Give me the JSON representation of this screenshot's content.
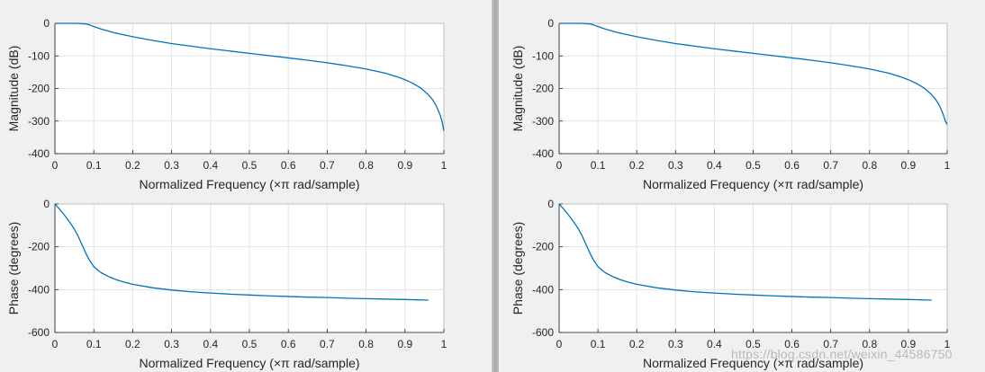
{
  "chart_data": [
    {
      "name": "panel-left",
      "type": "line",
      "subplots": [
        {
          "id": "magnitude",
          "xlabel": "Normalized Frequency  (×π rad/sample)",
          "ylabel": "Magnitude (dB)",
          "xlim": [
            0,
            1
          ],
          "ylim": [
            -400,
            0
          ],
          "xticks": [
            "0",
            "0.1",
            "0.2",
            "0.3",
            "0.4",
            "0.5",
            "0.6",
            "0.7",
            "0.8",
            "0.9",
            "1"
          ],
          "yticks": [
            "0",
            "-100",
            "-200",
            "-300",
            "-400"
          ],
          "grid": true,
          "series": [
            {
              "name": "magnitude",
              "color": "#0072bd",
              "x": [
                0,
                0.02,
                0.04,
                0.06,
                0.08,
                0.09,
                0.1,
                0.12,
                0.15,
                0.2,
                0.25,
                0.3,
                0.35,
                0.4,
                0.45,
                0.5,
                0.55,
                0.6,
                0.65,
                0.7,
                0.75,
                0.8,
                0.85,
                0.88,
                0.9,
                0.92,
                0.94,
                0.96,
                0.97,
                0.98,
                0.99,
                0.995,
                1.0
              ],
              "y": [
                0,
                0,
                0,
                0,
                -2,
                -5,
                -10,
                -18,
                -28,
                -41,
                -52,
                -62,
                -70,
                -78,
                -85,
                -92,
                -99,
                -106,
                -113,
                -121,
                -130,
                -140,
                -153,
                -164,
                -173,
                -184,
                -198,
                -219,
                -233,
                -252,
                -280,
                -300,
                -330
              ]
            }
          ]
        },
        {
          "id": "phase",
          "xlabel": "Normalized Frequency  (×π rad/sample)",
          "ylabel": "Phase (degrees)",
          "xlim": [
            0,
            1
          ],
          "ylim": [
            -600,
            0
          ],
          "xticks": [
            "0",
            "0.1",
            "0.2",
            "0.3",
            "0.4",
            "0.5",
            "0.6",
            "0.7",
            "0.8",
            "0.9",
            "1"
          ],
          "yticks": [
            "0",
            "-200",
            "-400",
            "-600"
          ],
          "grid": true,
          "series": [
            {
              "name": "phase",
              "color": "#0072bd",
              "x": [
                0,
                0.01,
                0.02,
                0.03,
                0.04,
                0.05,
                0.06,
                0.07,
                0.08,
                0.09,
                0.1,
                0.11,
                0.12,
                0.14,
                0.16,
                0.18,
                0.2,
                0.25,
                0.3,
                0.35,
                0.4,
                0.45,
                0.5,
                0.55,
                0.6,
                0.65,
                0.7,
                0.75,
                0.8,
                0.85,
                0.9,
                0.96
              ],
              "y": [
                0,
                -20,
                -42,
                -65,
                -90,
                -118,
                -152,
                -192,
                -232,
                -266,
                -292,
                -309,
                -322,
                -341,
                -355,
                -366,
                -375,
                -391,
                -402,
                -410,
                -416,
                -421,
                -425,
                -429,
                -432,
                -435,
                -437,
                -440,
                -442,
                -444,
                -446,
                -449
              ]
            }
          ]
        }
      ]
    },
    {
      "name": "panel-right",
      "type": "line",
      "subplots": [
        {
          "id": "magnitude",
          "xlabel": "Normalized Frequency  (×π rad/sample)",
          "ylabel": "Magnitude (dB)",
          "xlim": [
            0,
            1
          ],
          "ylim": [
            -400,
            0
          ],
          "xticks": [
            "0",
            "0.1",
            "0.2",
            "0.3",
            "0.4",
            "0.5",
            "0.6",
            "0.7",
            "0.8",
            "0.9",
            "1"
          ],
          "yticks": [
            "0",
            "-100",
            "-200",
            "-300",
            "-400"
          ],
          "grid": true,
          "series": [
            {
              "name": "magnitude",
              "color": "#0072bd",
              "x": [
                0,
                0.02,
                0.04,
                0.06,
                0.08,
                0.09,
                0.1,
                0.12,
                0.15,
                0.2,
                0.25,
                0.3,
                0.35,
                0.4,
                0.45,
                0.5,
                0.55,
                0.6,
                0.65,
                0.7,
                0.75,
                0.8,
                0.85,
                0.88,
                0.9,
                0.92,
                0.94,
                0.96,
                0.97,
                0.98,
                0.99,
                0.995,
                1.0
              ],
              "y": [
                0,
                0,
                0,
                0,
                -2,
                -5,
                -10,
                -18,
                -28,
                -41,
                -52,
                -62,
                -70,
                -78,
                -85,
                -92,
                -99,
                -106,
                -113,
                -121,
                -130,
                -140,
                -153,
                -164,
                -173,
                -184,
                -198,
                -219,
                -233,
                -252,
                -280,
                -300,
                -310
              ]
            }
          ]
        },
        {
          "id": "phase",
          "xlabel": "Normalized Frequency  (×π rad/sample)",
          "ylabel": "Phase (degrees)",
          "xlim": [
            0,
            1
          ],
          "ylim": [
            -600,
            0
          ],
          "xticks": [
            "0",
            "0.1",
            "0.2",
            "0.3",
            "0.4",
            "0.5",
            "0.6",
            "0.7",
            "0.8",
            "0.9",
            "1"
          ],
          "yticks": [
            "0",
            "-200",
            "-400",
            "-600"
          ],
          "grid": true,
          "series": [
            {
              "name": "phase",
              "color": "#0072bd",
              "x": [
                0,
                0.01,
                0.02,
                0.03,
                0.04,
                0.05,
                0.06,
                0.07,
                0.08,
                0.09,
                0.1,
                0.11,
                0.12,
                0.14,
                0.16,
                0.18,
                0.2,
                0.25,
                0.3,
                0.35,
                0.4,
                0.45,
                0.5,
                0.55,
                0.6,
                0.65,
                0.7,
                0.75,
                0.8,
                0.85,
                0.9,
                0.96
              ],
              "y": [
                0,
                -20,
                -42,
                -65,
                -90,
                -118,
                -152,
                -192,
                -232,
                -266,
                -292,
                -309,
                -322,
                -341,
                -355,
                -366,
                -375,
                -391,
                -402,
                -410,
                -416,
                -421,
                -425,
                -429,
                -432,
                -435,
                -437,
                -440,
                -442,
                -444,
                -446,
                -449
              ]
            }
          ]
        }
      ]
    }
  ],
  "watermark": "https://blog.csdn.net/weixin_44586750"
}
